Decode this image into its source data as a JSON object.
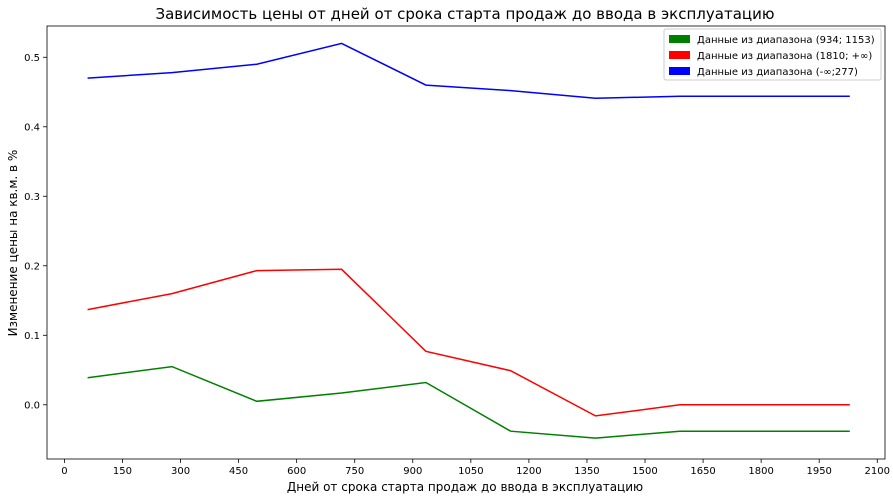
{
  "chart_data": {
    "type": "line",
    "title": "Зависимость цены от дней от срока старта продаж до ввода в эксплуатацию",
    "xlabel": "Дней от срока старта продаж до ввода в эксплуатацию",
    "ylabel": "Изменение цены на кв.м. в %",
    "xlim": [
      -45,
      2120
    ],
    "ylim": [
      -0.078,
      0.545
    ],
    "xticks": [
      0,
      150,
      300,
      450,
      600,
      750,
      900,
      1050,
      1200,
      1350,
      1500,
      1650,
      1800,
      1950,
      2100
    ],
    "yticks": [
      0.0,
      0.1,
      0.2,
      0.3,
      0.4,
      0.5
    ],
    "ytick_labels": [
      "0.0",
      "0.1",
      "0.2",
      "0.3",
      "0.4",
      "0.5"
    ],
    "grid": false,
    "legend_position": "top-right",
    "x": [
      60,
      278,
      497,
      716,
      934,
      1153,
      1372,
      1590,
      2029
    ],
    "series": [
      {
        "name": "Данные из диапазона (934; 1153)",
        "color": "#008000",
        "values": [
          0.039,
          0.055,
          0.005,
          0.017,
          0.032,
          -0.038,
          -0.048,
          -0.038,
          -0.038
        ]
      },
      {
        "name": "Данные из диапазона (1810; +∞)",
        "color": "#ff0000",
        "values": [
          0.137,
          0.16,
          0.193,
          0.195,
          0.077,
          0.049,
          -0.016,
          0.0,
          0.0
        ]
      },
      {
        "name": "Данные из диапазона (-∞;277)",
        "color": "#0000ff",
        "values": [
          0.47,
          0.478,
          0.49,
          0.52,
          0.46,
          0.452,
          0.441,
          0.444,
          0.444
        ]
      }
    ]
  }
}
